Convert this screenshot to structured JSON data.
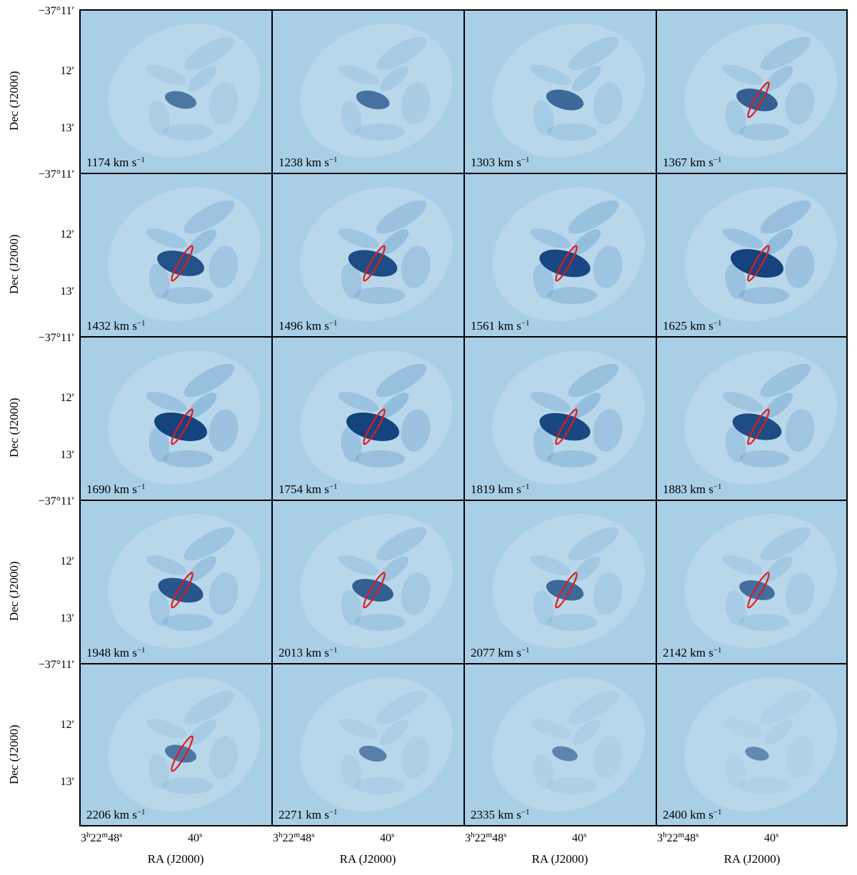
{
  "figure": {
    "y_axis_label": "Dec (J2000)",
    "x_axis_label": "RA (J2000)",
    "y_ticks": [
      "−37°11′",
      "12′",
      "13′"
    ],
    "x_ticks": [
      "3h22m48s",
      "40s"
    ],
    "velocity_unit": "km s",
    "velocity_unit_exp": "−1",
    "colors": {
      "background": "#a9cfe6",
      "emission_dark": "#0b3b78",
      "contour": "#e31a1c"
    },
    "panels": [
      {
        "velocity": "1174",
        "emission": 0.45,
        "contour": false
      },
      {
        "velocity": "1238",
        "emission": 0.5,
        "contour": false
      },
      {
        "velocity": "1303",
        "emission": 0.6,
        "contour": false
      },
      {
        "velocity": "1367",
        "emission": 0.7,
        "contour": true
      },
      {
        "velocity": "1432",
        "emission": 0.85,
        "contour": true
      },
      {
        "velocity": "1496",
        "emission": 0.9,
        "contour": true
      },
      {
        "velocity": "1561",
        "emission": 0.95,
        "contour": true
      },
      {
        "velocity": "1625",
        "emission": 1.0,
        "contour": true
      },
      {
        "velocity": "1690",
        "emission": 1.0,
        "contour": true
      },
      {
        "velocity": "1754",
        "emission": 1.0,
        "contour": true
      },
      {
        "velocity": "1819",
        "emission": 0.95,
        "contour": true
      },
      {
        "velocity": "1883",
        "emission": 0.9,
        "contour": true
      },
      {
        "velocity": "1948",
        "emission": 0.8,
        "contour": true
      },
      {
        "velocity": "2013",
        "emission": 0.7,
        "contour": true
      },
      {
        "velocity": "2077",
        "emission": 0.6,
        "contour": true
      },
      {
        "velocity": "2142",
        "emission": 0.55,
        "contour": true
      },
      {
        "velocity": "2206",
        "emission": 0.45,
        "contour": true
      },
      {
        "velocity": "2271",
        "emission": 0.35,
        "contour": false
      },
      {
        "velocity": "2335",
        "emission": 0.3,
        "contour": false
      },
      {
        "velocity": "2400",
        "emission": 0.25,
        "contour": false
      }
    ]
  }
}
